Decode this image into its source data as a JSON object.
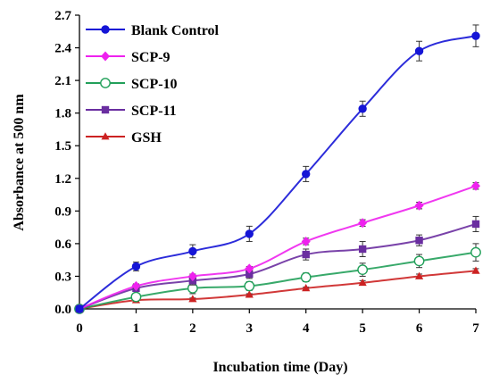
{
  "chart_data": {
    "type": "line",
    "xlabel": "Incubation time (Day)",
    "ylabel": "Absorbance at 500 nm",
    "x": [
      0,
      1,
      2,
      3,
      4,
      5,
      6,
      7
    ],
    "xlim": [
      0,
      7
    ],
    "ylim": [
      0,
      2.7
    ],
    "x_ticks": [
      "0",
      "1",
      "2",
      "3",
      "4",
      "5",
      "6",
      "7"
    ],
    "y_ticks": [
      "0.0",
      "0.3",
      "0.6",
      "0.9",
      "1.2",
      "1.5",
      "1.8",
      "2.1",
      "2.4",
      "2.7"
    ],
    "grid": false,
    "legend_position": "top-left",
    "series": [
      {
        "name": "Blank Control",
        "color": "#1515d6",
        "marker": "circle",
        "values": [
          0.0,
          0.39,
          0.53,
          0.69,
          1.24,
          1.84,
          2.37,
          2.51
        ],
        "errors": [
          0.0,
          0.04,
          0.06,
          0.07,
          0.07,
          0.07,
          0.09,
          0.1
        ]
      },
      {
        "name": "SCP-9",
        "color": "#ee22ee",
        "marker": "diamond",
        "values": [
          0.0,
          0.21,
          0.3,
          0.37,
          0.62,
          0.79,
          0.95,
          1.13
        ],
        "errors": [
          0.0,
          0.02,
          0.02,
          0.02,
          0.03,
          0.03,
          0.03,
          0.03
        ]
      },
      {
        "name": "SCP-10",
        "color": "#22a05a",
        "marker": "open-circle",
        "values": [
          0.0,
          0.11,
          0.19,
          0.21,
          0.29,
          0.36,
          0.44,
          0.52
        ],
        "errors": [
          0.0,
          0.03,
          0.05,
          0.04,
          0.04,
          0.06,
          0.06,
          0.08
        ]
      },
      {
        "name": "SCP-11",
        "color": "#6a2ea0",
        "marker": "square",
        "values": [
          0.0,
          0.19,
          0.26,
          0.32,
          0.5,
          0.55,
          0.63,
          0.78
        ],
        "errors": [
          0.0,
          0.03,
          0.04,
          0.04,
          0.05,
          0.07,
          0.05,
          0.07
        ]
      },
      {
        "name": "GSH",
        "color": "#cc2222",
        "marker": "triangle",
        "values": [
          0.0,
          0.08,
          0.09,
          0.13,
          0.19,
          0.24,
          0.3,
          0.35
        ],
        "errors": [
          0.0,
          0.01,
          0.01,
          0.01,
          0.01,
          0.02,
          0.02,
          0.02
        ]
      }
    ]
  }
}
